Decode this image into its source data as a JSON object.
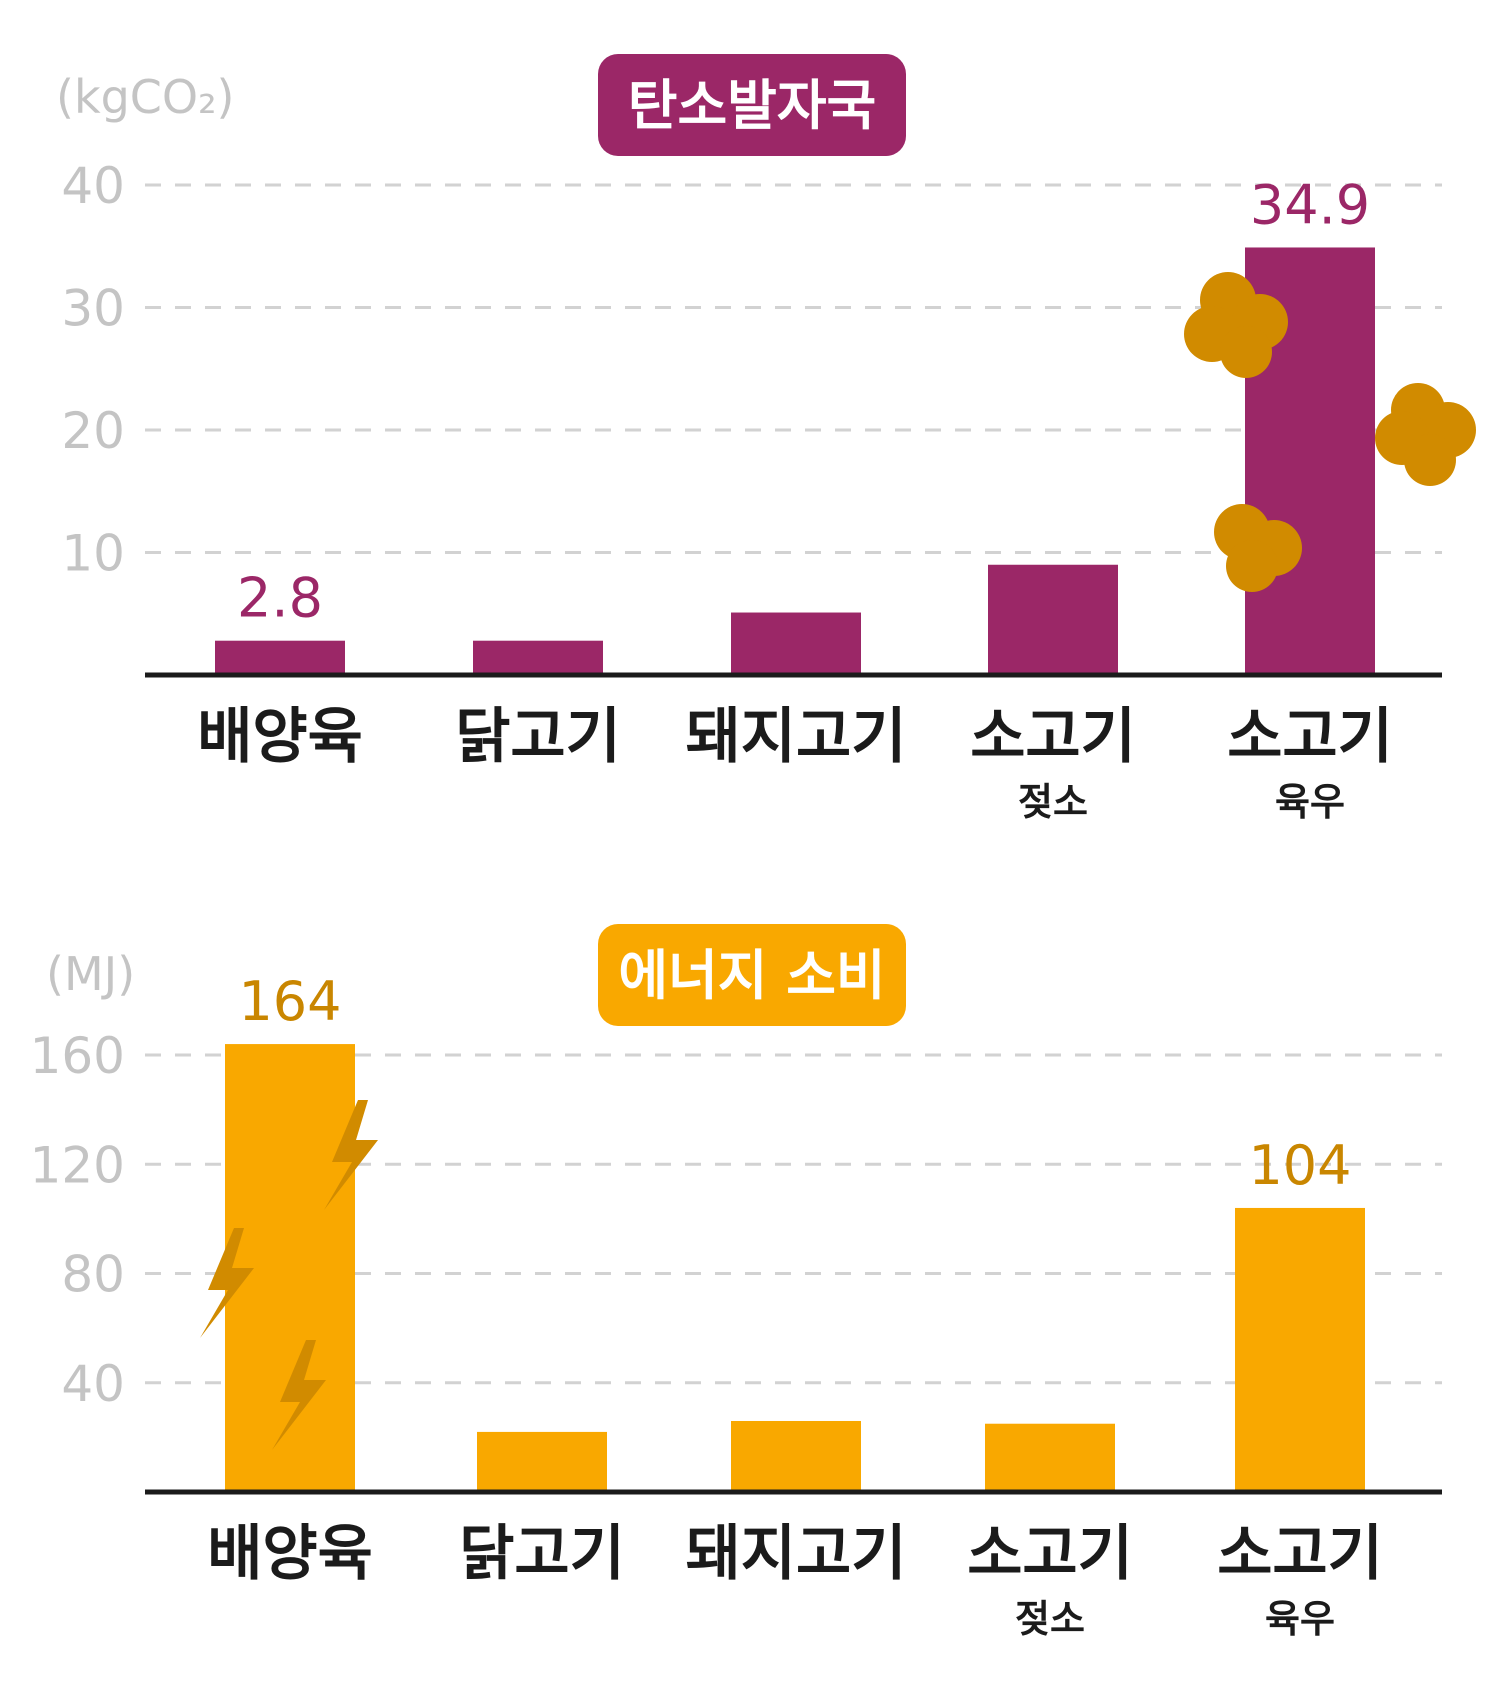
{
  "chart_data": [
    {
      "type": "bar",
      "title": "탄소발자국",
      "unit": "(kgCO₂)",
      "categories": [
        "배양육",
        "닭고기",
        "돼지고기",
        "소고기",
        "소고기"
      ],
      "subcategories": [
        "",
        "",
        "",
        "젖소",
        "육우"
      ],
      "values": [
        2.8,
        2.8,
        5.1,
        9.0,
        34.9
      ],
      "data_labels": [
        "2.8",
        "",
        "",
        "",
        "34.9"
      ],
      "yticks": [
        10,
        20,
        30,
        40
      ],
      "ytick_labels": [
        "10",
        "20",
        "30",
        "40"
      ],
      "ylim": [
        0,
        40
      ],
      "grid": true,
      "colors": {
        "bar": "#9b2767",
        "title_bg": "#9b2767",
        "label": "#9b2767",
        "decoration": "#d18b00"
      }
    },
    {
      "type": "bar",
      "title": "에너지 소비",
      "unit": "(MJ)",
      "categories": [
        "배양육",
        "닭고기",
        "돼지고기",
        "소고기",
        "소고기"
      ],
      "subcategories": [
        "",
        "",
        "",
        "젖소",
        "육우"
      ],
      "values": [
        164,
        22,
        26,
        25,
        104
      ],
      "data_labels": [
        "164",
        "",
        "",
        "",
        "104"
      ],
      "yticks": [
        40,
        80,
        120,
        160
      ],
      "ytick_labels": [
        "40",
        "80",
        "120",
        "160"
      ],
      "ylim": [
        0,
        160
      ],
      "grid": true,
      "colors": {
        "bar": "#f9a800",
        "title_bg": "#f9a800",
        "label": "#c98600",
        "decoration": "#d18b00"
      }
    }
  ]
}
